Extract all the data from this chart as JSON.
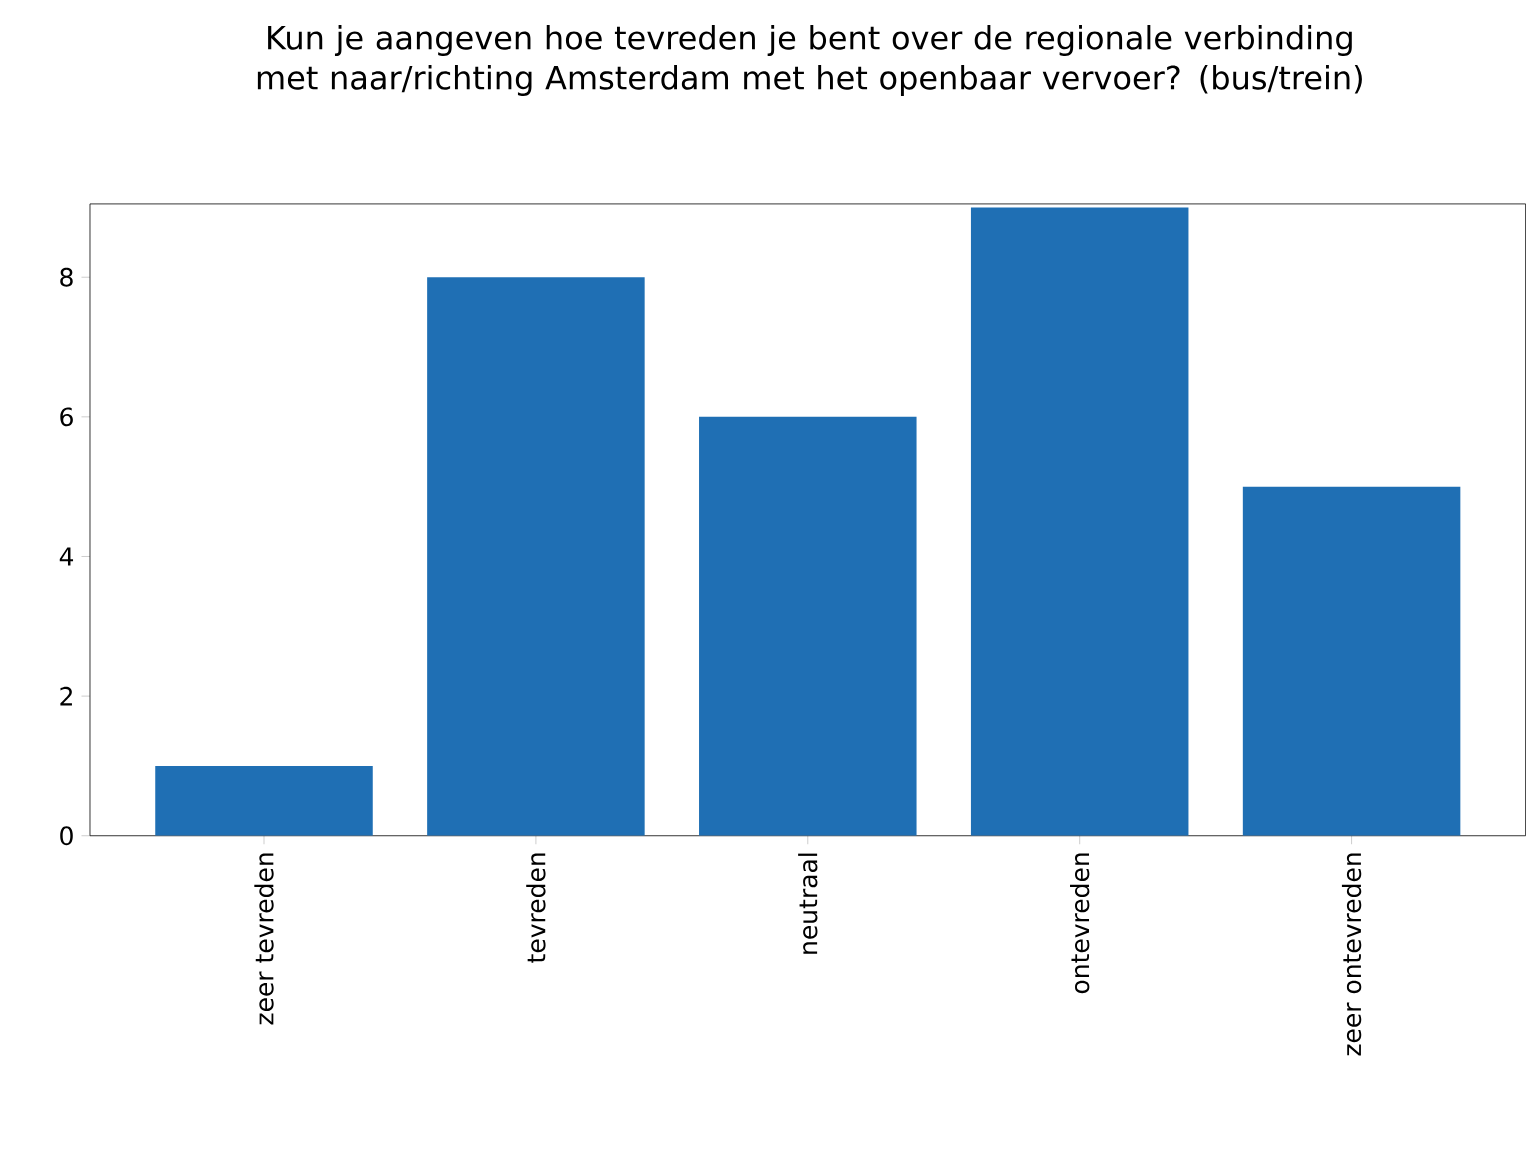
{
  "chart_data": {
    "type": "bar",
    "title": "Kun je aangeven hoe tevreden je bent over de regionale verbinding met naar/richting Amsterdam met het openbaar vervoer? (bus/trein)",
    "categories": [
      "zeer tevreden",
      "tevreden",
      "neutraal",
      "ontevreden",
      "zeer ontevreden"
    ],
    "values": [
      1,
      8,
      6,
      9,
      5
    ],
    "color": "#1f6fb4",
    "ylim": [
      0,
      9.05
    ],
    "yticks": [
      0,
      2,
      4,
      6,
      8
    ],
    "grid": false
  }
}
